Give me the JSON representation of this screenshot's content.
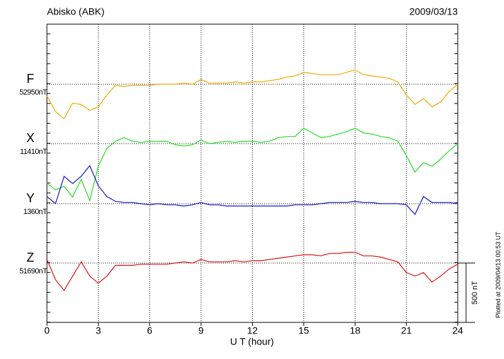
{
  "chart_data": {
    "type": "line",
    "title": "Abisko (ABK)",
    "date": "2009/03/13",
    "x_label": "U T (hour)",
    "footer": "Plotted at 2009/04/13 00:53 UT",
    "xlim": [
      0,
      24
    ],
    "xticks": [
      0,
      3,
      6,
      9,
      12,
      15,
      18,
      21,
      24
    ],
    "grid": true,
    "scale": {
      "value": 500,
      "label": "500 nT"
    },
    "x": [
      0,
      0.5,
      1,
      1.5,
      2,
      2.5,
      3,
      3.5,
      4,
      4.5,
      5,
      5.5,
      6,
      6.5,
      7,
      7.5,
      8,
      8.5,
      9,
      9.5,
      10,
      10.5,
      11,
      11.5,
      12,
      12.5,
      13,
      13.5,
      14,
      14.5,
      15,
      15.5,
      16,
      16.5,
      17,
      17.5,
      18,
      18.5,
      19,
      19.5,
      20,
      20.5,
      21,
      21.5,
      22,
      22.5,
      23,
      23.5,
      24
    ],
    "series": [
      {
        "name": "F",
        "color": "#f2a900",
        "baseline": {
          "value": 52950,
          "label": "52950nT"
        },
        "values": [
          52850,
          52720,
          52660,
          52790,
          52780,
          52730,
          52760,
          52860,
          52940,
          52930,
          52940,
          52940,
          52940,
          52950,
          52950,
          52950,
          52960,
          52950,
          52990,
          52960,
          52960,
          52960,
          52970,
          52960,
          52970,
          52970,
          52980,
          52990,
          53010,
          53020,
          53050,
          53040,
          53030,
          53030,
          53030,
          53050,
          53070,
          53030,
          53020,
          53010,
          53000,
          52970,
          52860,
          52780,
          52830,
          52760,
          52800,
          52890,
          52950
        ]
      },
      {
        "name": "X",
        "color": "#22dd22",
        "baseline": {
          "value": 11410,
          "label": "11410nT"
        },
        "values": [
          11080,
          11020,
          11050,
          10960,
          11110,
          10930,
          11220,
          11370,
          11430,
          11460,
          11430,
          11420,
          11430,
          11430,
          11430,
          11400,
          11390,
          11400,
          11440,
          11410,
          11420,
          11430,
          11420,
          11430,
          11430,
          11420,
          11430,
          11460,
          11470,
          11470,
          11540,
          11500,
          11460,
          11470,
          11490,
          11510,
          11540,
          11500,
          11490,
          11470,
          11460,
          11430,
          11310,
          11170,
          11250,
          11220,
          11280,
          11350,
          11410
        ]
      },
      {
        "name": "Y",
        "color": "#1414cc",
        "baseline": {
          "value": 1360,
          "label": "1360nT"
        },
        "values": [
          1420,
          1360,
          1590,
          1530,
          1590,
          1680,
          1510,
          1420,
          1380,
          1370,
          1370,
          1360,
          1350,
          1360,
          1350,
          1350,
          1340,
          1350,
          1370,
          1350,
          1350,
          1340,
          1340,
          1340,
          1340,
          1340,
          1340,
          1340,
          1340,
          1350,
          1350,
          1350,
          1360,
          1370,
          1370,
          1370,
          1380,
          1370,
          1370,
          1360,
          1360,
          1360,
          1350,
          1270,
          1420,
          1370,
          1370,
          1370,
          1360
        ]
      },
      {
        "name": "Z",
        "color": "#dd1111",
        "baseline": {
          "value": 51690,
          "label": "51690nT"
        },
        "values": [
          51720,
          51550,
          51460,
          51580,
          51700,
          51580,
          51520,
          51580,
          51670,
          51670,
          51670,
          51680,
          51680,
          51680,
          51680,
          51690,
          51700,
          51690,
          51720,
          51700,
          51700,
          51700,
          51710,
          51700,
          51710,
          51710,
          51720,
          51730,
          51740,
          51750,
          51760,
          51760,
          51750,
          51770,
          51770,
          51780,
          51780,
          51750,
          51750,
          51740,
          51720,
          51700,
          51610,
          51580,
          51610,
          51530,
          51580,
          51640,
          51680
        ]
      }
    ]
  }
}
